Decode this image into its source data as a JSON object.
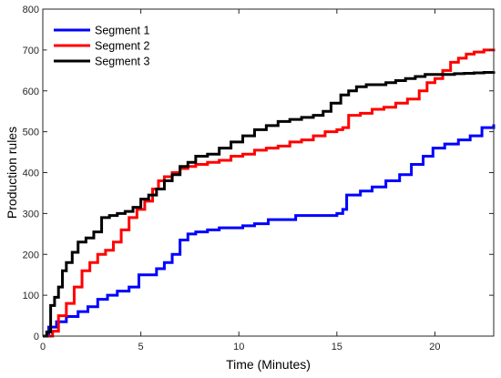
{
  "chart_data": {
    "type": "line",
    "title": "",
    "xlabel": "Time (Minutes)",
    "ylabel": "Production rules",
    "xlim": [
      0,
      23
    ],
    "ylim": [
      0,
      800
    ],
    "xticks": [
      0,
      5,
      10,
      15,
      20
    ],
    "yticks": [
      0,
      100,
      200,
      300,
      400,
      500,
      600,
      700,
      800
    ],
    "grid": false,
    "box": true,
    "legend_position": "top-left",
    "series": [
      {
        "name": "Segment 1",
        "color": "#0000FF",
        "step": true,
        "x": [
          0,
          0.3,
          0.7,
          1.2,
          1.8,
          2.3,
          2.8,
          3.3,
          3.8,
          4.4,
          4.9,
          5.3,
          5.8,
          6.2,
          6.6,
          7.0,
          7.4,
          7.8,
          8.4,
          9.0,
          9.6,
          10.2,
          10.8,
          11.5,
          12.2,
          12.9,
          13.6,
          14.3,
          15.0,
          15.3,
          15.5,
          16.2,
          16.8,
          17.5,
          18.2,
          18.8,
          19.4,
          19.9,
          20.5,
          21.2,
          21.8,
          22.4,
          23.0
        ],
        "y": [
          0,
          22,
          35,
          48,
          60,
          72,
          90,
          100,
          110,
          120,
          150,
          150,
          165,
          180,
          200,
          235,
          250,
          255,
          260,
          265,
          265,
          270,
          275,
          285,
          285,
          295,
          295,
          295,
          300,
          310,
          345,
          355,
          365,
          380,
          395,
          420,
          440,
          460,
          470,
          480,
          490,
          510,
          518
        ]
      },
      {
        "name": "Segment 2",
        "color": "#FF0000",
        "step": true,
        "x": [
          0,
          0.5,
          0.8,
          1.2,
          1.6,
          2.0,
          2.4,
          2.8,
          3.2,
          3.6,
          4.0,
          4.4,
          4.8,
          5.2,
          5.6,
          5.9,
          6.2,
          6.6,
          7.0,
          7.4,
          7.8,
          8.4,
          9.0,
          9.6,
          10.2,
          10.8,
          11.4,
          12.0,
          12.6,
          13.2,
          13.8,
          14.4,
          15.0,
          15.3,
          15.6,
          16.2,
          16.8,
          17.4,
          18.0,
          18.6,
          19.2,
          19.6,
          20.0,
          20.4,
          20.8,
          21.2,
          21.6,
          22.0,
          22.5,
          23.0
        ],
        "y": [
          0,
          12,
          50,
          80,
          120,
          160,
          180,
          200,
          210,
          230,
          260,
          290,
          310,
          330,
          360,
          380,
          390,
          400,
          410,
          415,
          420,
          425,
          430,
          440,
          445,
          455,
          460,
          465,
          475,
          480,
          490,
          500,
          505,
          510,
          540,
          545,
          555,
          560,
          570,
          580,
          600,
          620,
          630,
          650,
          670,
          680,
          690,
          695,
          700,
          703
        ]
      },
      {
        "name": "Segment 3",
        "color": "#000000",
        "step": true,
        "x": [
          0,
          0.2,
          0.4,
          0.6,
          0.8,
          1.0,
          1.2,
          1.5,
          1.8,
          2.2,
          2.6,
          3.0,
          3.4,
          3.8,
          4.2,
          4.6,
          5.0,
          5.4,
          5.8,
          6.2,
          6.6,
          7.0,
          7.4,
          7.8,
          8.4,
          9.0,
          9.6,
          10.2,
          10.8,
          11.4,
          12.0,
          12.6,
          13.2,
          13.8,
          14.3,
          14.7,
          15.2,
          15.6,
          16.0,
          16.5,
          17.0,
          17.5,
          18.0,
          18.5,
          19.0,
          19.5,
          20.0,
          20.5,
          21.0,
          21.5,
          22.0,
          22.5,
          23.0
        ],
        "y": [
          0,
          10,
          75,
          95,
          120,
          160,
          180,
          205,
          230,
          240,
          255,
          290,
          295,
          300,
          305,
          315,
          335,
          345,
          360,
          380,
          395,
          415,
          425,
          440,
          445,
          460,
          475,
          490,
          505,
          515,
          525,
          530,
          535,
          540,
          550,
          570,
          590,
          600,
          610,
          615,
          615,
          620,
          625,
          630,
          635,
          640,
          640,
          640,
          642,
          643,
          644,
          645,
          648
        ]
      }
    ]
  }
}
